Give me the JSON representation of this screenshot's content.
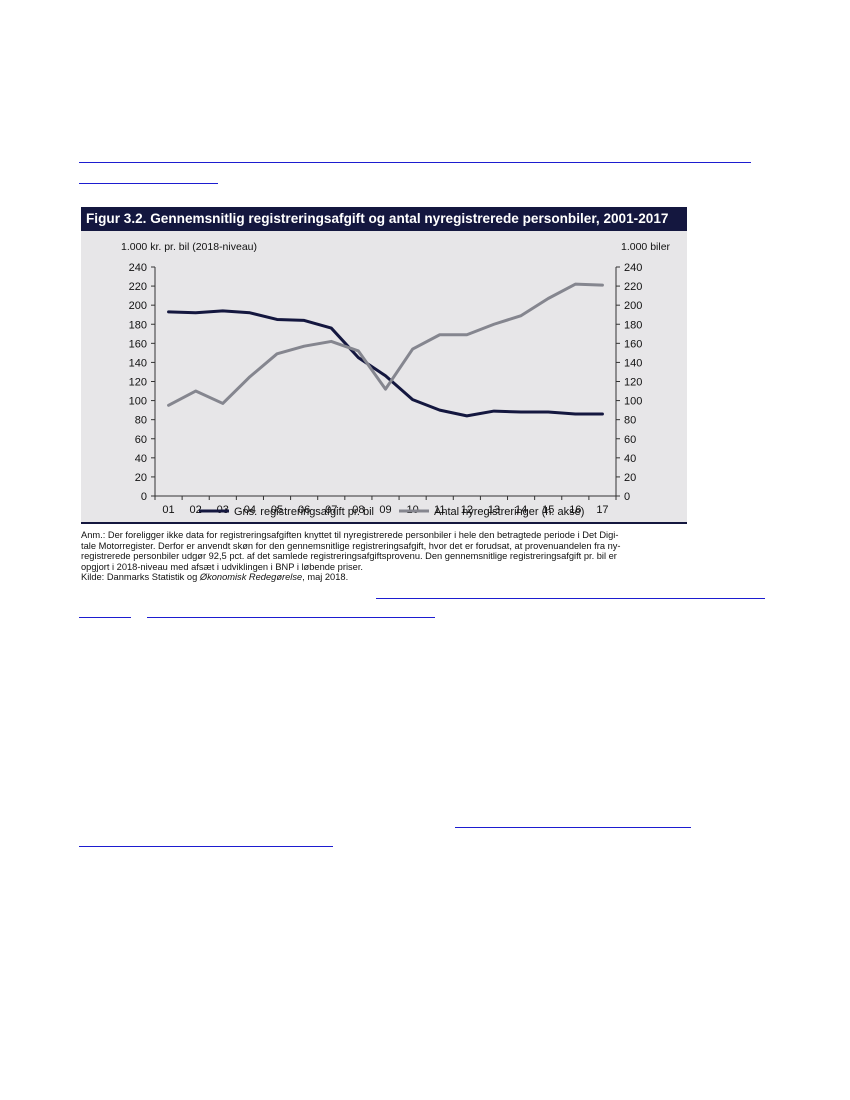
{
  "figure": {
    "title": "Figur 3.2. Gennemsnitlig registreringsafgift og antal nyregistrerede personbiler, 2001-2017",
    "left_unit": "1.000 kr. pr. bil (2018-niveau)",
    "right_unit": "1.000 biler",
    "note": [
      "Anm.: Der foreligger ikke data for registreringsafgiften knyttet til nyregistrerede personbiler i hele den betragtede periode i Det Digi-",
      "tale Motorregister. Derfor er anvendt skøn for den gennemsnitlige registreringsafgift, hvor det er forudsat, at provenuandelen fra ny-",
      "registrerede personbiler udgør 92,5 pct. af det samlede registreringsafgiftsprovenu. Den gennemsnitlige registreringsafgift pr. bil er",
      "opgjort i 2018-niveau med afsæt i udviklingen i BNP i løbende priser."
    ],
    "source_prefix": "Kilde: Danmarks Statistik og ",
    "source_italic": "Økonomisk Redegørelse",
    "source_suffix": ", maj 2018."
  },
  "chart_data": {
    "type": "line",
    "title": "Figur 3.2. Gennemsnitlig registreringsafgift og antal nyregistrerede personbiler, 2001-2017",
    "categories": [
      "01",
      "02",
      "03",
      "04",
      "05",
      "06",
      "07",
      "08",
      "09",
      "10",
      "11",
      "12",
      "13",
      "14",
      "15",
      "16",
      "17"
    ],
    "ylim": [
      0,
      240
    ],
    "y_ticks": [
      0,
      20,
      40,
      60,
      80,
      100,
      120,
      140,
      160,
      180,
      200,
      220,
      240
    ],
    "y2lim": [
      0,
      240
    ],
    "y_label": "1.000 kr. pr. bil (2018-niveau)",
    "y2_label": "1.000 biler",
    "series": [
      {
        "name": "Gns. registreringsafgift pr. bil",
        "axis": "left",
        "color": "#14173f",
        "values": [
          193,
          192,
          194,
          192,
          185,
          184,
          176,
          145,
          126,
          101,
          90,
          84,
          89,
          88,
          88,
          86,
          86
        ]
      },
      {
        "name": "Antal nyregistreringer (h. akse)",
        "axis": "right",
        "color": "#85868f",
        "values": [
          95,
          110,
          97,
          125,
          149,
          157,
          162,
          152,
          112,
          154,
          169,
          169,
          180,
          189,
          207,
          222,
          221
        ]
      }
    ],
    "grid": false,
    "legend_position": "bottom"
  }
}
